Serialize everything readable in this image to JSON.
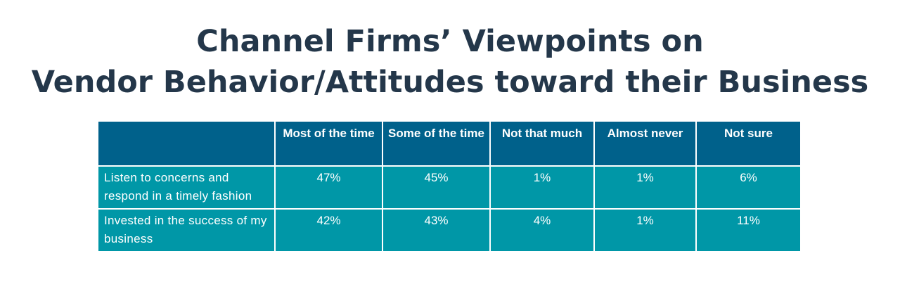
{
  "title": {
    "line1": "Channel Firms’ Viewpoints on",
    "line2": "Vendor Behavior/Attitudes toward their Business"
  },
  "chart_data": {
    "type": "table",
    "title": "Channel Firms’ Viewpoints on Vendor Behavior/Attitudes toward their Business",
    "columns": [
      "",
      "Most of the time",
      "Some of the time",
      "Not that much",
      "Almost never",
      "Not sure"
    ],
    "rows": [
      {
        "label": "Listen to concerns and respond in a timely fashion",
        "values": [
          "47%",
          "45%",
          "1%",
          "1%",
          "6%"
        ]
      },
      {
        "label": "Invested in the success of my business",
        "values": [
          "42%",
          "43%",
          "4%",
          "1%",
          "11%"
        ]
      }
    ]
  },
  "colors": {
    "title": "#24374a",
    "header_bg": "#00618b",
    "cell_bg": "#0097a7",
    "text_on_cells": "#ffffff"
  }
}
